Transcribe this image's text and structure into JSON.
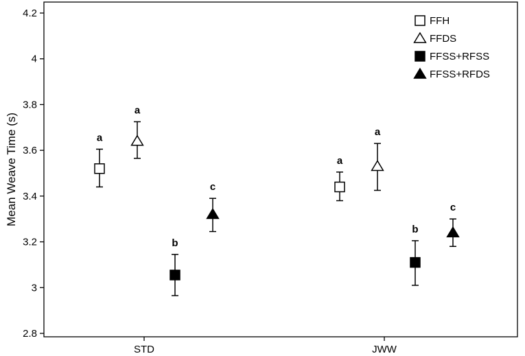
{
  "chart_data": {
    "type": "scatter",
    "subtype": "errorbar",
    "title": "",
    "xlabel": "",
    "ylabel": "Mean Weave Time (s)",
    "ylim": [
      2.8,
      4.2
    ],
    "yticks": [
      "2.8",
      "3",
      "3.2",
      "3.4",
      "3.6",
      "3.8",
      "4",
      "4.2"
    ],
    "categories": [
      "STD",
      "JWW"
    ],
    "grid": false,
    "legend_position": "top-right",
    "series": [
      {
        "name": "FFH",
        "marker": "square-open",
        "values": [
          3.52,
          3.44
        ],
        "lower": [
          3.44,
          3.38
        ],
        "upper": [
          3.605,
          3.505
        ],
        "labels": [
          "a",
          "a"
        ]
      },
      {
        "name": "FFDS",
        "marker": "triangle-open",
        "values": [
          3.64,
          3.53
        ],
        "lower": [
          3.565,
          3.425
        ],
        "upper": [
          3.725,
          3.63
        ],
        "labels": [
          "a",
          "a"
        ]
      },
      {
        "name": "FFSS+RFSS",
        "marker": "square-filled",
        "values": [
          3.055,
          3.11
        ],
        "lower": [
          2.965,
          3.01
        ],
        "upper": [
          3.145,
          3.205
        ],
        "labels": [
          "b",
          "b"
        ]
      },
      {
        "name": "FFSS+RFDS",
        "marker": "triangle-filled",
        "values": [
          3.32,
          3.24
        ],
        "lower": [
          3.245,
          3.18
        ],
        "upper": [
          3.39,
          3.3
        ],
        "labels": [
          "c",
          "c"
        ]
      }
    ]
  }
}
